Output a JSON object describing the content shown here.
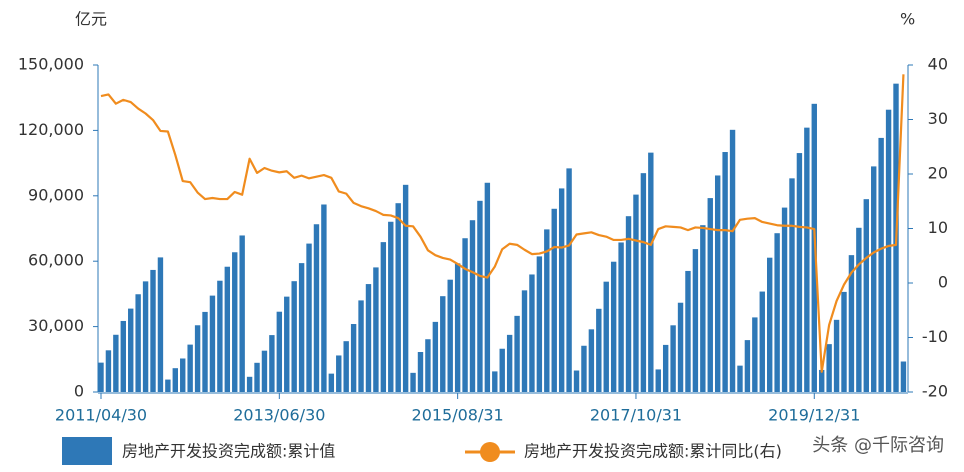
{
  "chart_data": {
    "type": "bar-line",
    "y_label": "亿元",
    "y2_label": "%",
    "watermark": "头条 @千际咨询",
    "categories": [
      "2011/04/30",
      null,
      null,
      null,
      null,
      null,
      null,
      null,
      null,
      null,
      null,
      null,
      null,
      null,
      null,
      null,
      null,
      null,
      null,
      null,
      null,
      null,
      null,
      null,
      "2013/06/30",
      null,
      null,
      null,
      null,
      null,
      null,
      null,
      null,
      null,
      null,
      null,
      null,
      null,
      null,
      null,
      null,
      null,
      null,
      null,
      null,
      null,
      null,
      null,
      "2015/08/31",
      null,
      null,
      null,
      null,
      null,
      null,
      null,
      null,
      null,
      null,
      null,
      null,
      null,
      null,
      null,
      null,
      null,
      null,
      null,
      null,
      null,
      null,
      null,
      "2017/10/31",
      null,
      null,
      null,
      null,
      null,
      null,
      null,
      null,
      null,
      null,
      null,
      null,
      null,
      null,
      null,
      null,
      null,
      null,
      null,
      null,
      null,
      null,
      null,
      "2019/12/31",
      null,
      null,
      null,
      null,
      null,
      null,
      null,
      null,
      null,
      null,
      null,
      null
    ],
    "series": [
      {
        "name": "房地产开发投资完成额:累计值",
        "color": "#2e78b7",
        "type": "bar",
        "values": [
          13470,
          19122,
          26250,
          32588,
          38255,
          44838,
          50746,
          55992,
          61740,
          5702,
          10926,
          15373,
          21737,
          30610,
          36737,
          44213,
          51046,
          57464,
          64103,
          71804,
          6970,
          13392,
          18953,
          26101,
          36828,
          43744,
          50833,
          59121,
          68078,
          76951,
          86013,
          8424,
          16759,
          23311,
          31183,
          42019,
          49509,
          57152,
          68751,
          78091,
          86609,
          95036,
          8786,
          18349,
          24205,
          32165,
          43955,
          51523,
          59018,
          70535,
          78801,
          87702,
          95979,
          9450,
          19846,
          26208,
          34929,
          46631,
          53913,
          62201,
          74598,
          84046,
          93387,
          102581,
          9854,
          21213,
          28750,
          38163,
          50610,
          59761,
          68594,
          80644,
          90544,
          100387,
          109799,
          10357,
          21603,
          30592,
          40948,
          55531,
          65546,
          76519,
          88948,
          99325,
          110083,
          120264,
          12090,
          23803,
          34217,
          46075,
          61609,
          72843,
          84589,
          98008,
          109603,
          121265,
          132194,
          10115,
          21963,
          33103,
          45920,
          62780,
          75325,
          88454,
          103484,
          116556,
          129492,
          141443,
          13986
        ]
      },
      {
        "name": "房地产开发投资完成额:累计同比(右)",
        "color": "#f08c1e",
        "type": "line",
        "axis": "y2",
        "values": [
          34.3,
          34.6,
          32.9,
          33.6,
          33.2,
          32.0,
          31.1,
          29.9,
          27.9,
          27.8,
          23.5,
          18.7,
          18.5,
          16.6,
          15.4,
          15.6,
          15.4,
          15.4,
          16.7,
          16.2,
          22.8,
          20.2,
          21.1,
          20.6,
          20.3,
          20.5,
          19.3,
          19.7,
          19.2,
          19.5,
          19.8,
          19.3,
          16.8,
          16.4,
          14.7,
          14.1,
          13.7,
          13.2,
          12.5,
          12.4,
          11.9,
          10.5,
          10.4,
          8.5,
          6.0,
          5.1,
          4.6,
          4.3,
          3.5,
          2.6,
          2.0,
          1.3,
          1.0,
          3.0,
          6.2,
          7.2,
          7.0,
          6.1,
          5.3,
          5.4,
          5.8,
          6.6,
          6.5,
          6.9,
          8.9,
          9.1,
          9.3,
          8.8,
          8.5,
          7.9,
          7.9,
          8.1,
          7.8,
          7.5,
          7.0,
          9.9,
          10.4,
          10.3,
          10.2,
          9.7,
          10.2,
          10.1,
          9.9,
          9.7,
          9.7,
          9.5,
          11.6,
          11.8,
          11.9,
          11.2,
          10.9,
          10.6,
          10.5,
          10.5,
          10.3,
          10.2,
          9.9,
          -16.3,
          -7.7,
          -3.3,
          -0.3,
          1.9,
          3.4,
          4.6,
          5.6,
          6.3,
          6.8,
          7.0,
          38.3
        ]
      }
    ],
    "ylim": [
      0,
      150000
    ],
    "yticks": [
      0,
      {
        "value": 30000,
        "label": "30,000"
      },
      {
        "value": 60000,
        "label": "60,000"
      },
      {
        "value": 90000,
        "label": "90,000"
      },
      {
        "value": 120000,
        "label": "120,000"
      },
      {
        "value": 150000,
        "label": "150,000"
      }
    ],
    "y2lim": [
      -20,
      40
    ],
    "y2ticks": [
      -20,
      -10,
      0,
      10,
      20,
      30,
      40
    ]
  }
}
